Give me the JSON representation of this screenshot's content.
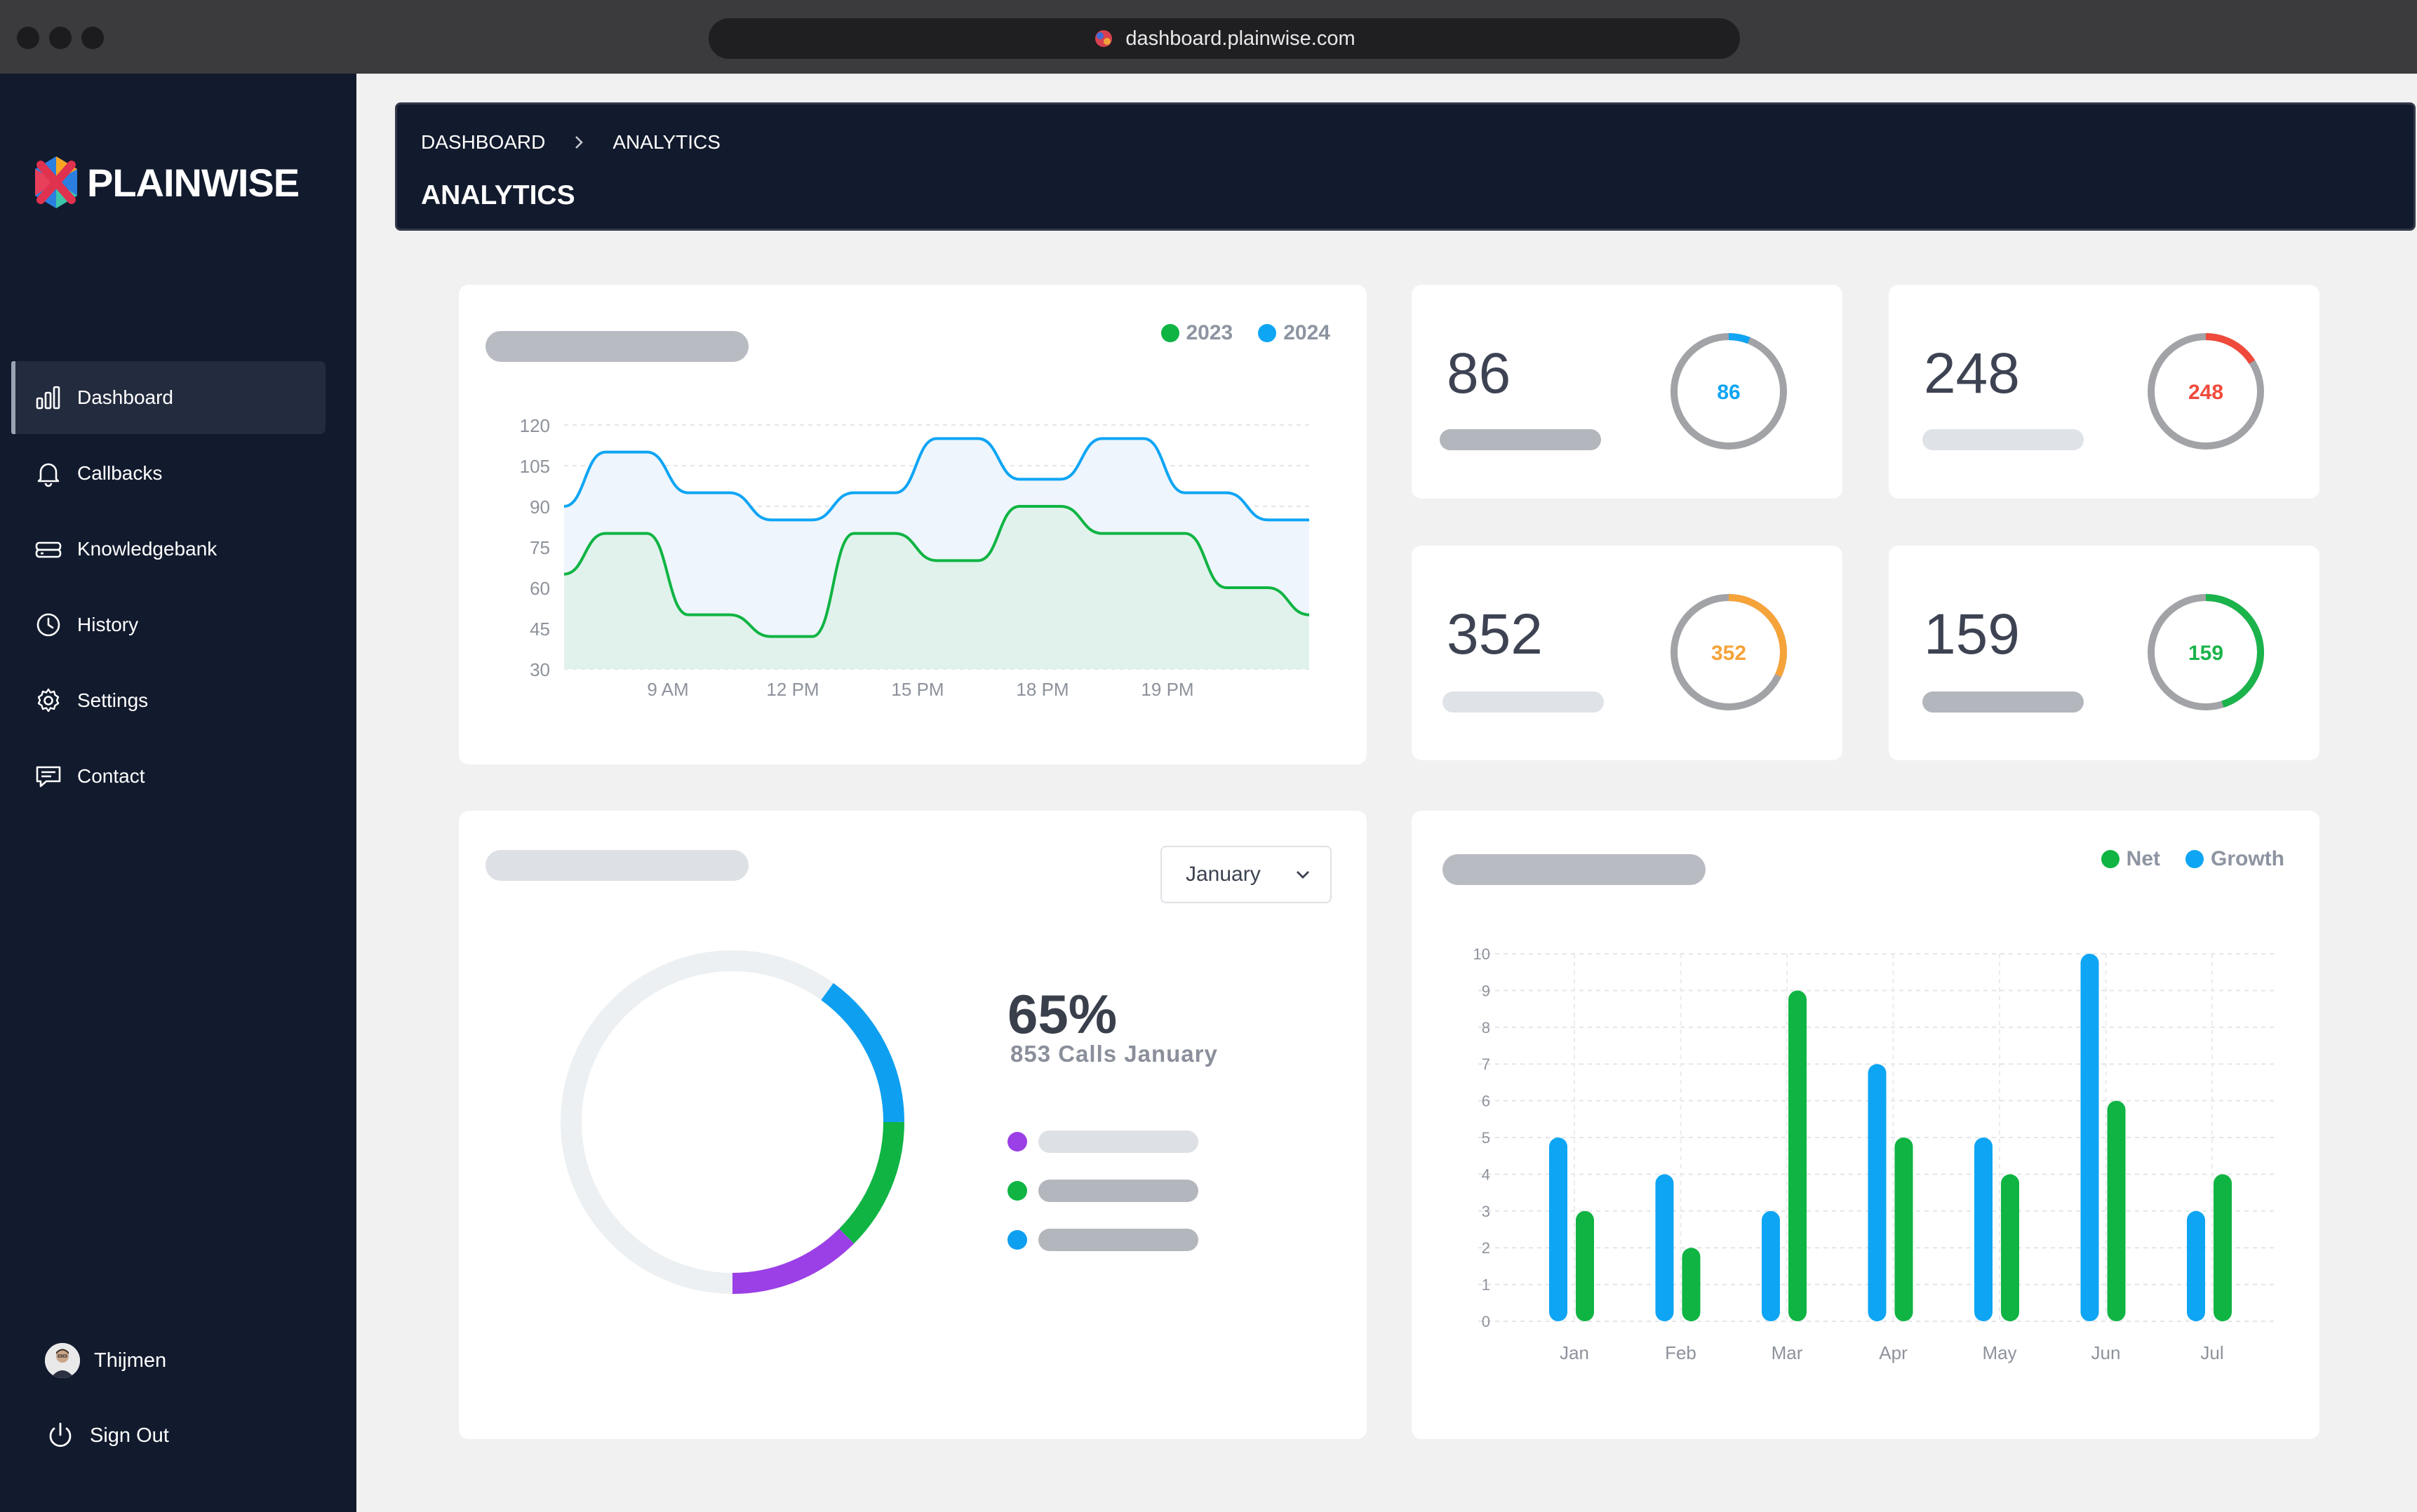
{
  "browser": {
    "url": "dashboard.plainwise.com"
  },
  "app": {
    "name": "PLAINWISE"
  },
  "sidebar": {
    "items": [
      {
        "label": "Dashboard",
        "icon": "bar-chart-icon",
        "active": true
      },
      {
        "label": "Callbacks",
        "icon": "bell-icon"
      },
      {
        "label": "Knowledgebank",
        "icon": "storage-icon"
      },
      {
        "label": "History",
        "icon": "clock-icon"
      },
      {
        "label": "Settings",
        "icon": "gear-icon"
      },
      {
        "label": "Contact",
        "icon": "message-icon"
      }
    ],
    "user": {
      "name": "Thijmen"
    },
    "signout_label": "Sign Out"
  },
  "header": {
    "breadcrumb": [
      "DASHBOARD",
      "ANALYTICS"
    ],
    "title": "ANALYTICS"
  },
  "stats": [
    {
      "value": "86",
      "ring_label": "86",
      "color": "#0ea5f4",
      "fraction": 0.06
    },
    {
      "value": "248",
      "ring_label": "248",
      "color": "#ef4a3c",
      "fraction": 0.16
    },
    {
      "value": "352",
      "ring_label": "352",
      "color": "#f6a33a",
      "fraction": 0.32
    },
    {
      "value": "159",
      "ring_label": "159",
      "color": "#1bb34b",
      "fraction": 0.45
    }
  ],
  "donut": {
    "month_select": "January",
    "percent": "65%",
    "subtitle": "853 Calls January",
    "segments": [
      {
        "color": "#9b3fe6",
        "fraction": 0.125
      },
      {
        "color": "#0fb443",
        "fraction": 0.125
      },
      {
        "color": "#0e9ff0",
        "fraction": 0.15
      }
    ],
    "legend_colors": [
      "#9b3fe6",
      "#0fb443",
      "#0e9ff0"
    ]
  },
  "colors": {
    "blue": "#0ea5f4",
    "green": "#0fb443",
    "sidebar_bg": "#121a2d",
    "track": "#a1a3a7"
  },
  "chart_data": [
    {
      "type": "area",
      "legend": [
        "2023",
        "2024"
      ],
      "series": [
        {
          "name": "2023",
          "color": "#0fb443",
          "values": [
            65,
            80,
            80,
            50,
            50,
            42,
            42,
            80,
            80,
            70,
            70,
            90,
            90,
            80,
            80,
            80,
            60,
            60,
            50
          ]
        },
        {
          "name": "2024",
          "color": "#0ea5f4",
          "values": [
            90,
            110,
            110,
            95,
            95,
            85,
            85,
            95,
            95,
            115,
            115,
            100,
            100,
            115,
            115,
            95,
            95,
            85,
            85
          ]
        }
      ],
      "x_tick_labels": [
        "9 AM",
        "12 PM",
        "15 PM",
        "18 PM",
        "19 PM"
      ],
      "y_ticks": [
        120,
        105,
        90,
        75,
        60,
        45,
        30
      ],
      "ylim": [
        30,
        120
      ]
    },
    {
      "type": "bar",
      "legend": [
        "Net",
        "Growth"
      ],
      "categories": [
        "Jan",
        "Feb",
        "Mar",
        "Apr",
        "May",
        "Jun",
        "Jul"
      ],
      "series": [
        {
          "name": "Net",
          "color": "#0ea5f4",
          "values": [
            5,
            4,
            3,
            7,
            5,
            10,
            3
          ]
        },
        {
          "name": "Growth",
          "color": "#0fb443",
          "values": [
            3,
            2,
            9,
            5,
            4,
            6,
            4
          ]
        }
      ],
      "y_ticks": [
        10,
        9,
        8,
        7,
        6,
        5,
        4,
        3,
        2,
        1,
        0
      ],
      "ylim": [
        0,
        10
      ]
    }
  ]
}
